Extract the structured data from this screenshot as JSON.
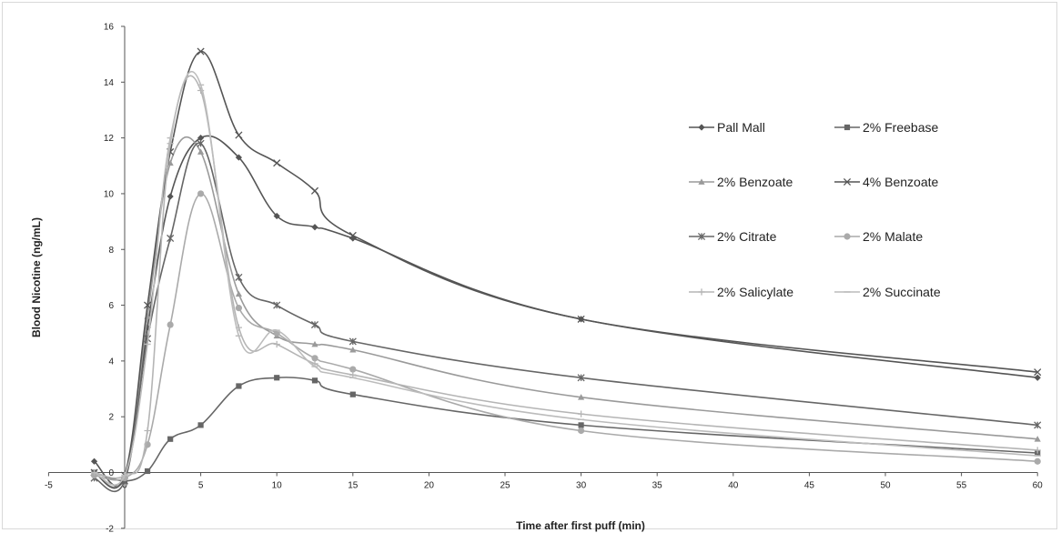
{
  "chart_data": {
    "type": "line",
    "title": "",
    "xlabel": "Time after first puff (min)",
    "ylabel": "Blood Nicotine (ng/mL)",
    "xlim": [
      -5,
      60
    ],
    "ylim": [
      -2,
      16
    ],
    "xticks": [
      -5,
      0,
      5,
      10,
      15,
      20,
      25,
      30,
      35,
      40,
      45,
      50,
      55,
      60
    ],
    "yticks": [
      -2,
      0,
      2,
      4,
      6,
      8,
      10,
      12,
      14,
      16
    ],
    "grid": false,
    "legend_position": "top-right",
    "series": [
      {
        "name": "Pall Mall",
        "marker": "diamond",
        "color": "#555555",
        "x": [
          -2,
          0,
          1.5,
          3,
          5,
          7.5,
          10,
          12.5,
          15,
          30,
          60
        ],
        "y": [
          0.4,
          -0.2,
          5.2,
          9.9,
          12.0,
          11.3,
          9.2,
          8.8,
          8.4,
          5.5,
          3.4
        ]
      },
      {
        "name": "2% Freebase",
        "marker": "square",
        "color": "#666666",
        "x": [
          -2,
          0,
          1.5,
          3,
          5,
          7.5,
          10,
          12.5,
          15,
          30,
          60
        ],
        "y": [
          0.0,
          -0.3,
          0.05,
          1.2,
          1.7,
          3.1,
          3.4,
          3.3,
          2.8,
          1.7,
          0.7
        ]
      },
      {
        "name": "2% Benzoate",
        "marker": "triangle",
        "color": "#9a9a9a",
        "x": [
          -2,
          0,
          1.5,
          3,
          5,
          7.5,
          10,
          12.5,
          15,
          30,
          60
        ],
        "y": [
          0.0,
          -0.1,
          5.6,
          11.1,
          11.5,
          6.4,
          4.9,
          4.6,
          4.4,
          2.7,
          1.2
        ]
      },
      {
        "name": "4% Benzoate",
        "marker": "x",
        "color": "#555555",
        "x": [
          -2,
          0,
          1.5,
          3,
          5,
          7.5,
          10,
          12.5,
          15,
          30,
          60
        ],
        "y": [
          0.0,
          -0.1,
          6.0,
          11.5,
          15.1,
          12.1,
          11.1,
          10.1,
          8.5,
          5.5,
          3.6
        ]
      },
      {
        "name": "2% Citrate",
        "marker": "star",
        "color": "#666666",
        "x": [
          -2,
          0,
          1.5,
          3,
          5,
          7.5,
          10,
          12.5,
          15,
          30,
          60
        ],
        "y": [
          -0.2,
          -0.3,
          4.8,
          8.4,
          11.8,
          7.0,
          6.0,
          5.3,
          4.7,
          3.4,
          1.7
        ]
      },
      {
        "name": "2% Malate",
        "marker": "circle",
        "color": "#aaaaaa",
        "x": [
          -2,
          0,
          1.5,
          3,
          5,
          7.5,
          10,
          12.5,
          15,
          30,
          60
        ],
        "y": [
          -0.1,
          -0.2,
          1.0,
          5.3,
          10.0,
          5.9,
          5.0,
          4.1,
          3.7,
          1.5,
          0.4
        ]
      },
      {
        "name": "2% Salicylate",
        "marker": "plus",
        "color": "#b5b5b5",
        "x": [
          -2,
          0,
          1.5,
          3,
          5,
          7.5,
          10,
          12.5,
          15,
          30,
          60
        ],
        "y": [
          0.0,
          -0.1,
          1.5,
          11.8,
          13.7,
          5.2,
          4.6,
          3.9,
          3.5,
          2.1,
          0.8
        ]
      },
      {
        "name": "2% Succinate",
        "marker": "dash",
        "color": "#bcbcbc",
        "x": [
          -2,
          0,
          1.5,
          3,
          5,
          7.5,
          10,
          12.5,
          15,
          30,
          60
        ],
        "y": [
          0.0,
          -0.1,
          4.6,
          12.0,
          13.9,
          4.9,
          5.1,
          3.8,
          3.4,
          1.9,
          0.6
        ]
      }
    ]
  }
}
